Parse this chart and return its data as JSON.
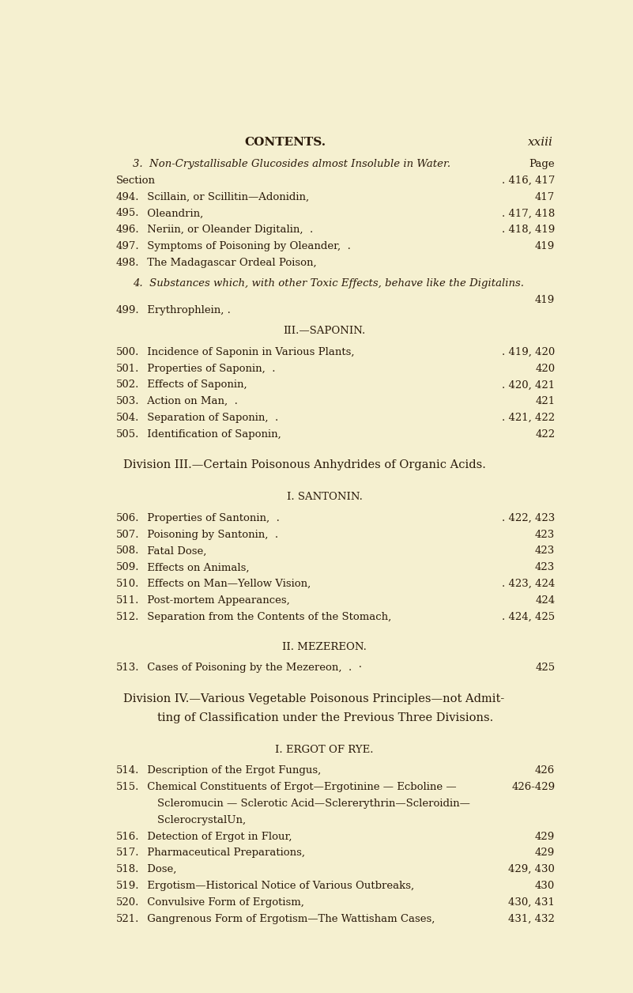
{
  "bg_color": "#f5f0d0",
  "text_color": "#2a1a0a",
  "page_title": "CONTENTS.",
  "page_number": "xxiii",
  "lines": [
    {
      "type": "italic_heading",
      "text": "3.  Non-Crystallisable Glucosides almost Insoluble in Water.",
      "page": "Page",
      "page_right": true
    },
    {
      "type": "entry",
      "label": "Section",
      "text": "",
      "page": ". 416, 417"
    },
    {
      "type": "entry",
      "label": "494.",
      "text": " Scillain, or Scillitin—Adonidin,",
      "page": "417"
    },
    {
      "type": "entry",
      "label": "495.",
      "text": " Oleandrin,",
      "page": ". 417, 418"
    },
    {
      "type": "entry",
      "label": "496.",
      "text": " Neriin, or Oleander Digitalin,  .",
      "page": ". 418, 419"
    },
    {
      "type": "entry",
      "label": "497.",
      "text": " Symptoms of Poisoning by Oleander,  .",
      "page": "419"
    },
    {
      "type": "entry",
      "label": "498.",
      "text": " The Madagascar Ordeal Poison,",
      "page": ""
    },
    {
      "type": "blank",
      "size": "small"
    },
    {
      "type": "italic_heading",
      "text": "4.  Substances which, with other Toxic Effects, behave like the Digitalins.",
      "page": ""
    },
    {
      "type": "page_only",
      "page": "419"
    },
    {
      "type": "entry",
      "label": "499.",
      "text": " Erythrophlein, .",
      "page": ""
    },
    {
      "type": "blank",
      "size": "small"
    },
    {
      "type": "section_heading",
      "text": "III.—SAPONIN."
    },
    {
      "type": "blank",
      "size": "small"
    },
    {
      "type": "entry",
      "label": "500.",
      "text": " Incidence of Saponin in Various Plants,",
      "page": ". 419, 420"
    },
    {
      "type": "entry",
      "label": "501.",
      "text": " Properties of Saponin,  .",
      "page": "420"
    },
    {
      "type": "entry",
      "label": "502.",
      "text": " Effects of Saponin,",
      "page": ". 420, 421"
    },
    {
      "type": "entry",
      "label": "503.",
      "text": " Action on Man,  .",
      "page": "421"
    },
    {
      "type": "entry",
      "label": "504.",
      "text": " Separation of Saponin,  .",
      "page": ". 421, 422"
    },
    {
      "type": "entry",
      "label": "505.",
      "text": " Identification of Saponin,",
      "page": "422"
    },
    {
      "type": "blank",
      "size": "large"
    },
    {
      "type": "division_heading",
      "text": "Division III.—Certain Poisonous Anhydrides of Organic Acids."
    },
    {
      "type": "blank",
      "size": "large"
    },
    {
      "type": "section_heading",
      "text": "I. SANTONIN."
    },
    {
      "type": "blank",
      "size": "small"
    },
    {
      "type": "entry",
      "label": "506.",
      "text": " Properties of Santonin,  .",
      "page": ". 422, 423"
    },
    {
      "type": "entry",
      "label": "507.",
      "text": " Poisoning by Santonin,  .",
      "page": "423"
    },
    {
      "type": "entry",
      "label": "508.",
      "text": " Fatal Dose,",
      "page": "423"
    },
    {
      "type": "entry",
      "label": "509.",
      "text": " Effects on Animals,",
      "page": "423"
    },
    {
      "type": "entry",
      "label": "510.",
      "text": " Effects on Man—Yellow Vision,",
      "page": ". 423, 424"
    },
    {
      "type": "entry",
      "label": "511.",
      "text": " Post-mortem Appearances,",
      "page": "424"
    },
    {
      "type": "entry",
      "label": "512.",
      "text": " Separation from the Contents of the Stomach,",
      "page": ". 424, 425"
    },
    {
      "type": "blank",
      "size": "large"
    },
    {
      "type": "section_heading",
      "text": "II. MEZEREON."
    },
    {
      "type": "blank",
      "size": "small"
    },
    {
      "type": "entry",
      "label": "513.",
      "text": " Cases of Poisoning by the Mezereon,  .  ·",
      "page": "425"
    },
    {
      "type": "blank",
      "size": "large"
    },
    {
      "type": "division_heading",
      "text": "Division IV.—Various Vegetable Poisonous Principles—not Admit-"
    },
    {
      "type": "division_heading2",
      "text": "ting of Classification under the Previous Three Divisions."
    },
    {
      "type": "blank",
      "size": "large"
    },
    {
      "type": "section_heading",
      "text": "I. ERGOT OF RYE."
    },
    {
      "type": "blank",
      "size": "small"
    },
    {
      "type": "entry",
      "label": "514.",
      "text": " Description of the Ergot Fungus,",
      "page": "426"
    },
    {
      "type": "entry_multi",
      "label": "515.",
      "text": " Chemical Constituents of Ergot—Ergotinine — Ecboline —",
      "text2": "    Scleromucin — Sclerotic Acid—Sclererythrin—Scleroidin—",
      "text3": "    SclerocrystalUn,",
      "page": "426-429"
    },
    {
      "type": "entry",
      "label": "516.",
      "text": " Detection of Ergot in Flour,",
      "page": "429"
    },
    {
      "type": "entry",
      "label": "517.",
      "text": " Pharmaceutical Preparations,",
      "page": "429"
    },
    {
      "type": "entry",
      "label": "518.",
      "text": " Dose,",
      "page": "429, 430"
    },
    {
      "type": "entry",
      "label": "519.",
      "text": " Ergotism—Historical Notice of Various Outbreaks,",
      "page": "430"
    },
    {
      "type": "entry",
      "label": "520.",
      "text": " Convulsive Form of Ergotism,",
      "page": "430, 431"
    },
    {
      "type": "entry",
      "label": "521.",
      "text": " Gangrenous Form of Ergotism—The Wattisham Cases,",
      "page": "431, 432"
    }
  ]
}
